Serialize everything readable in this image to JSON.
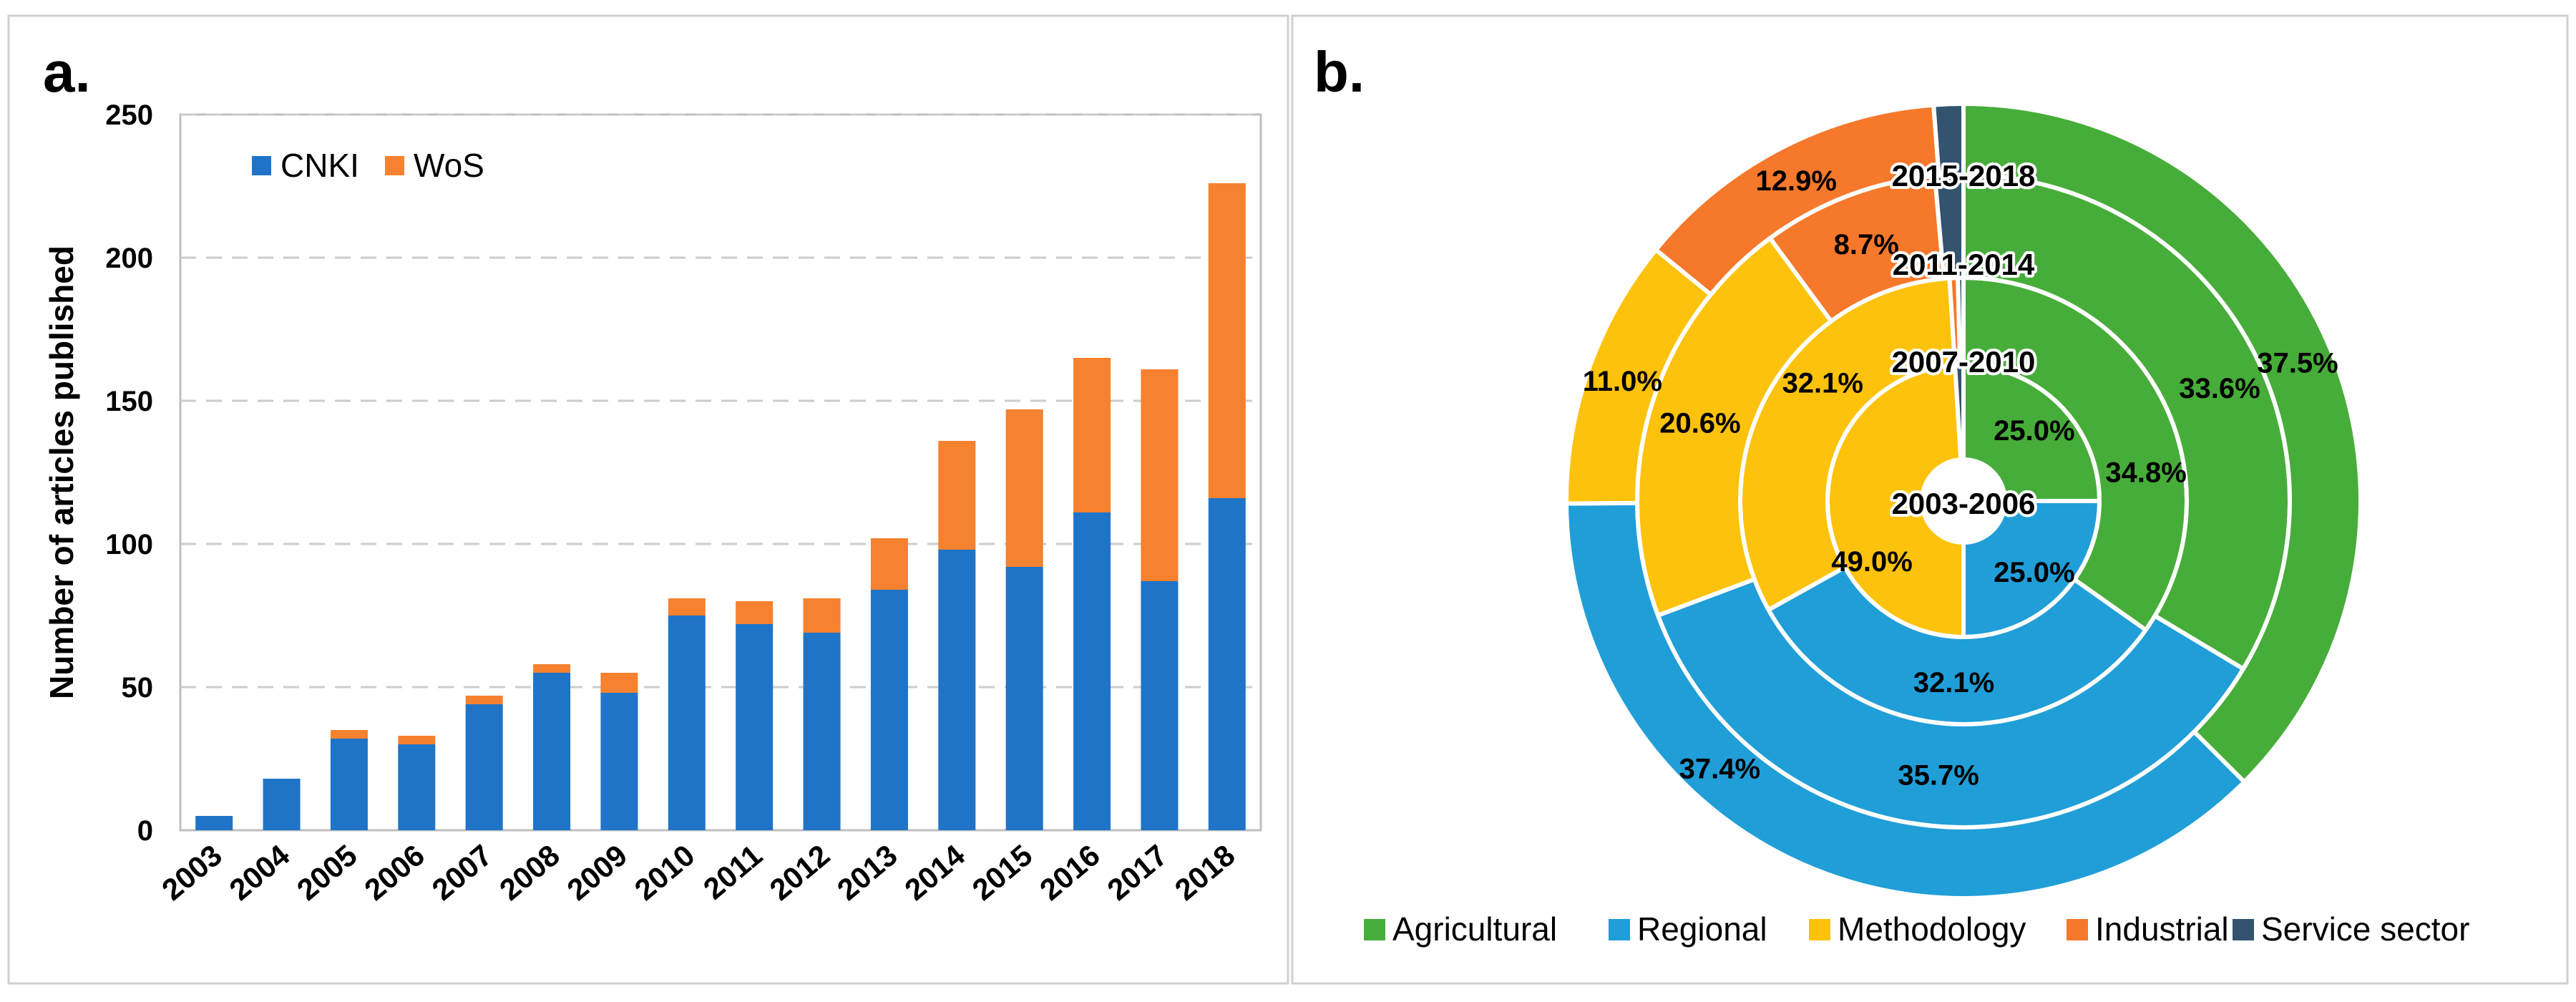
{
  "colors": {
    "cnki": "#1f74c8",
    "wos": "#f6812f",
    "agricultural": "#47ad3a",
    "regional": "#209ed8",
    "methodology": "#fcc20c",
    "industrial": "#f6782b",
    "service_sector": "#34536f",
    "gridline": "#cccccc",
    "axis": "#bfbfbf"
  },
  "panel_a": {
    "label": "a."
  },
  "panel_b": {
    "label": "b."
  },
  "chart_data": [
    {
      "type": "bar",
      "stacked": true,
      "title": "",
      "xlabel": "",
      "ylabel": "Number of articles published",
      "ylim": [
        0,
        250
      ],
      "yticks": [
        0,
        50,
        100,
        150,
        200,
        250
      ],
      "grid": true,
      "legend_position": "top-left",
      "categories": [
        "2003",
        "2004",
        "2005",
        "2006",
        "2007",
        "2008",
        "2009",
        "2010",
        "2011",
        "2012",
        "2013",
        "2014",
        "2015",
        "2016",
        "2017",
        "2018"
      ],
      "series": [
        {
          "name": "CNKI",
          "values": [
            5,
            18,
            32,
            30,
            44,
            55,
            48,
            75,
            72,
            69,
            84,
            98,
            92,
            111,
            87,
            116
          ]
        },
        {
          "name": "WoS",
          "values": [
            0,
            0,
            3,
            3,
            3,
            3,
            7,
            6,
            8,
            12,
            18,
            38,
            55,
            54,
            74,
            110
          ]
        }
      ]
    },
    {
      "type": "pie",
      "variant": "multi-ring-donut",
      "title": "",
      "legend_position": "bottom",
      "categories": [
        "Agricultural",
        "Regional",
        "Methodology",
        "Industrial",
        "Service sector"
      ],
      "rings": [
        {
          "name": "2003-2006",
          "values": [
            25.0,
            25.0,
            49.0,
            0,
            1.0
          ],
          "labels": [
            "25.0%",
            "25.0%",
            "49.0%",
            "",
            ""
          ]
        },
        {
          "name": "2007-2010",
          "values": [
            34.8,
            32.1,
            32.1,
            0.6,
            0.4
          ],
          "labels": [
            "34.8%",
            "32.1%",
            "32.1%",
            "",
            ""
          ]
        },
        {
          "name": "2011-2014",
          "values": [
            33.6,
            35.7,
            20.6,
            8.7,
            1.4
          ],
          "labels": [
            "33.6%",
            "35.7%",
            "20.6%",
            "8.7%",
            ""
          ]
        },
        {
          "name": "2015-2018",
          "values": [
            37.5,
            37.4,
            11.0,
            12.9,
            1.2
          ],
          "labels": [
            "37.5%",
            "37.4%",
            "11.0%",
            "12.9%",
            ""
          ]
        }
      ]
    }
  ]
}
